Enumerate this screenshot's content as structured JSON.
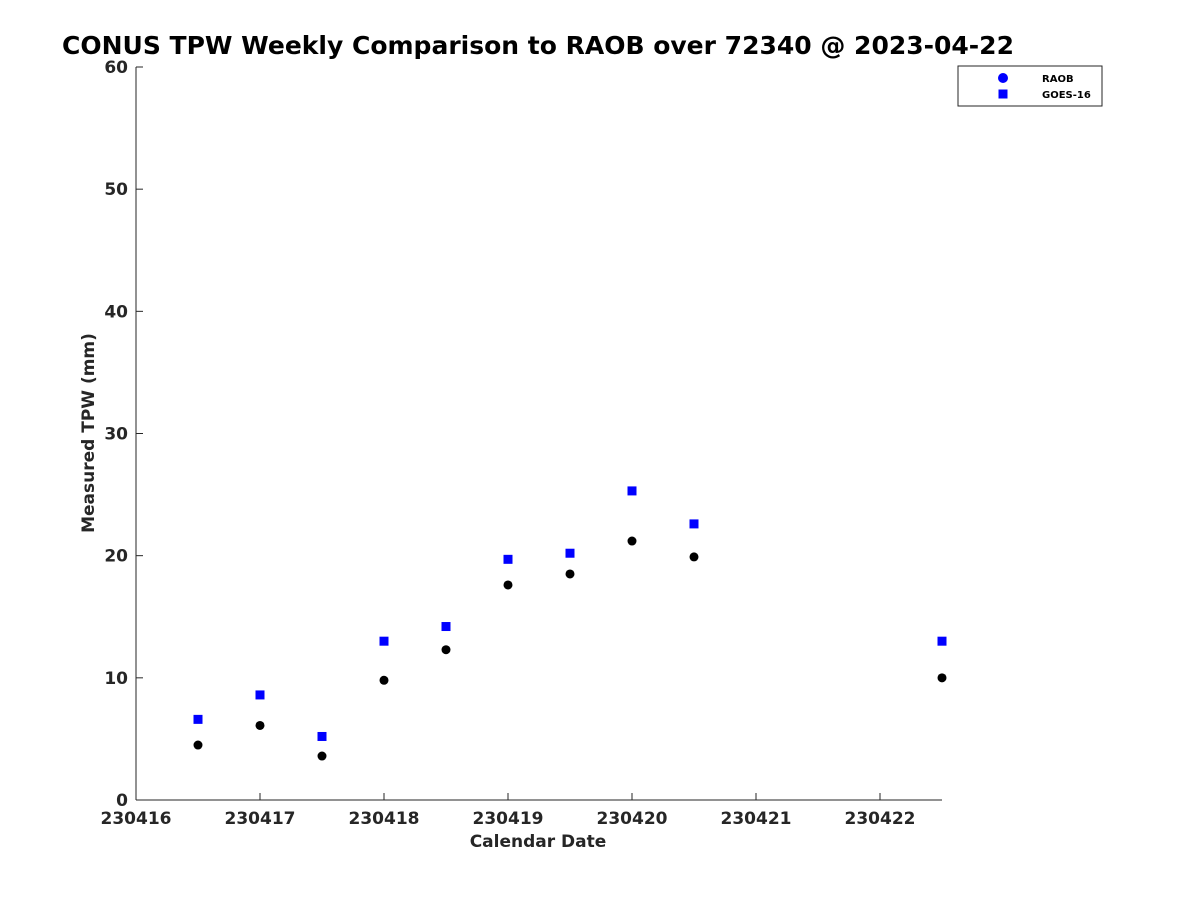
{
  "chart_data": {
    "type": "scatter",
    "title": "CONUS TPW Weekly Comparison to RAOB over 72340 @ 2023-04-22",
    "xlabel": "Calendar Date",
    "ylabel": "Measured TPW (mm)",
    "xlim": [
      230416,
      230422.5
    ],
    "ylim": [
      0,
      60
    ],
    "x_ticks": [
      230416,
      230417,
      230418,
      230419,
      230420,
      230421,
      230422
    ],
    "x_tick_labels": [
      "230416",
      "230417",
      "230418",
      "230419",
      "230420",
      "230421",
      "230422"
    ],
    "y_ticks": [
      0,
      10,
      20,
      30,
      40,
      50,
      60
    ],
    "y_tick_labels": [
      "0",
      "10",
      "20",
      "30",
      "40",
      "50",
      "60"
    ],
    "grid": false,
    "legend_position": "top-right",
    "series": [
      {
        "name": "RAOB",
        "marker": "circle",
        "color": "#000000",
        "legend_color": "#0000ff",
        "x": [
          230416.5,
          230417,
          230417.5,
          230418,
          230418.5,
          230419,
          230419.5,
          230420,
          230420.5,
          230422.5
        ],
        "values": [
          4.5,
          6.1,
          3.6,
          9.8,
          12.3,
          17.6,
          18.5,
          21.2,
          19.9,
          10.0
        ]
      },
      {
        "name": "GOES-16",
        "marker": "square",
        "color": "#0000ff",
        "legend_color": "#0000ff",
        "x": [
          230416.5,
          230417,
          230417.5,
          230418,
          230418.5,
          230419,
          230419.5,
          230420,
          230420.5,
          230422.5
        ],
        "values": [
          6.6,
          8.6,
          5.2,
          13.0,
          14.2,
          19.7,
          20.2,
          25.3,
          22.6,
          13.0
        ]
      }
    ]
  }
}
